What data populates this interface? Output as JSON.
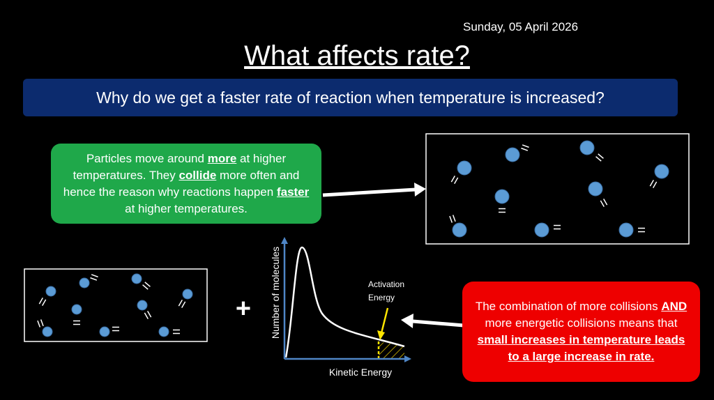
{
  "header": {
    "date": "Sunday, 05 April 2026",
    "title": "What affects rate?"
  },
  "banner": {
    "question": "Why do we get a faster rate of reaction when temperature is increased?"
  },
  "green_box": {
    "runs": [
      {
        "text": "Particles move around ",
        "emphasis": false
      },
      {
        "text": "more",
        "emphasis": true
      },
      {
        "text": " at higher temperatures. They ",
        "emphasis": false
      },
      {
        "text": "collide",
        "emphasis": true
      },
      {
        "text": " more often and hence the reason why reactions happen ",
        "emphasis": false
      },
      {
        "text": "faster",
        "emphasis": true
      },
      {
        "text": " at higher temperatures.",
        "emphasis": false
      }
    ]
  },
  "plus": "+",
  "graph": {
    "y_label": "Number of molecules",
    "x_label": "Kinetic Energy",
    "annotation": "Activation Energy"
  },
  "red_box": {
    "runs": [
      {
        "text": "The combination of more collisions ",
        "emphasis": false
      },
      {
        "text": "AND",
        "emphasis": true
      },
      {
        "text": " more energetic collisions means that ",
        "emphasis": false
      },
      {
        "text": "small increases in temperature leads to a large increase in rate.",
        "emphasis": true
      }
    ]
  }
}
